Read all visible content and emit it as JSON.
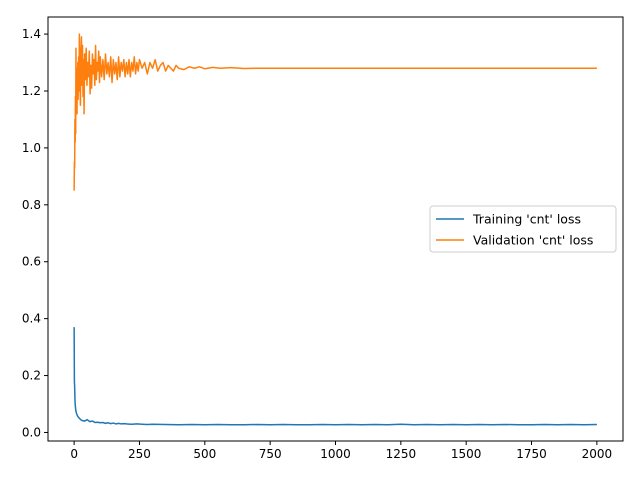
{
  "chart_data": {
    "type": "line",
    "title": "",
    "xlabel": "",
    "ylabel": "",
    "xlim": [
      -100,
      2100
    ],
    "ylim": [
      -0.03,
      1.46
    ],
    "xticks": [
      0,
      250,
      500,
      750,
      1000,
      1250,
      1500,
      1750,
      2000
    ],
    "yticks": [
      0.0,
      0.2,
      0.4,
      0.6,
      0.8,
      1.0,
      1.2,
      1.4
    ],
    "ytick_labels": [
      "0.0",
      "0.2",
      "0.4",
      "0.6",
      "0.8",
      "1.0",
      "1.2",
      "1.4"
    ],
    "grid": false,
    "legend_position": "center-right",
    "series": [
      {
        "name": "Training 'cnt' loss",
        "color": "#1f77b4",
        "x": [
          0,
          1,
          2,
          3,
          4,
          5,
          6,
          8,
          10,
          12,
          15,
          20,
          25,
          30,
          40,
          50,
          60,
          70,
          80,
          90,
          100,
          110,
          120,
          130,
          140,
          150,
          160,
          170,
          180,
          190,
          200,
          220,
          240,
          260,
          280,
          300,
          350,
          400,
          450,
          500,
          550,
          600,
          650,
          700,
          750,
          800,
          850,
          900,
          950,
          1000,
          1050,
          1100,
          1150,
          1200,
          1250,
          1300,
          1350,
          1400,
          1450,
          1500,
          1550,
          1600,
          1650,
          1700,
          1750,
          1800,
          1850,
          1900,
          1950,
          2000
        ],
        "values": [
          0.37,
          0.18,
          0.16,
          0.12,
          0.1,
          0.09,
          0.08,
          0.07,
          0.065,
          0.06,
          0.055,
          0.05,
          0.045,
          0.042,
          0.04,
          0.045,
          0.038,
          0.04,
          0.035,
          0.036,
          0.034,
          0.035,
          0.032,
          0.034,
          0.031,
          0.033,
          0.03,
          0.032,
          0.03,
          0.031,
          0.03,
          0.029,
          0.03,
          0.029,
          0.028,
          0.029,
          0.028,
          0.027,
          0.028,
          0.027,
          0.028,
          0.027,
          0.027,
          0.028,
          0.027,
          0.028,
          0.027,
          0.027,
          0.028,
          0.027,
          0.028,
          0.027,
          0.028,
          0.027,
          0.029,
          0.027,
          0.028,
          0.027,
          0.028,
          0.027,
          0.028,
          0.027,
          0.028,
          0.027,
          0.027,
          0.028,
          0.027,
          0.028,
          0.027,
          0.028
        ]
      },
      {
        "name": "Validation 'cnt' loss",
        "color": "#ff7f0e",
        "x": [
          0,
          1,
          2,
          3,
          4,
          5,
          6,
          7,
          8,
          9,
          10,
          11,
          12,
          13,
          14,
          15,
          16,
          17,
          18,
          19,
          20,
          22,
          24,
          26,
          28,
          30,
          32,
          34,
          36,
          38,
          40,
          43,
          46,
          49,
          52,
          55,
          58,
          61,
          64,
          67,
          70,
          73,
          76,
          79,
          82,
          85,
          88,
          91,
          94,
          97,
          100,
          105,
          110,
          115,
          120,
          125,
          130,
          135,
          140,
          145,
          150,
          155,
          160,
          165,
          170,
          175,
          180,
          185,
          190,
          195,
          200,
          205,
          210,
          215,
          220,
          225,
          230,
          235,
          240,
          245,
          250,
          260,
          270,
          280,
          290,
          300,
          310,
          320,
          330,
          340,
          350,
          360,
          370,
          380,
          390,
          400,
          420,
          440,
          460,
          480,
          500,
          530,
          560,
          600,
          650,
          700,
          750,
          800,
          900,
          1000,
          1200,
          1400,
          1600,
          1800,
          2000
        ],
        "values": [
          0.85,
          0.95,
          0.93,
          1.1,
          1.02,
          1.18,
          1.05,
          1.35,
          1.15,
          1.22,
          1.28,
          1.12,
          1.25,
          1.18,
          1.3,
          1.17,
          1.22,
          1.32,
          1.2,
          1.25,
          1.4,
          1.27,
          1.15,
          1.33,
          1.39,
          1.22,
          1.36,
          1.18,
          1.31,
          1.12,
          1.33,
          1.24,
          1.35,
          1.22,
          1.3,
          1.25,
          1.34,
          1.19,
          1.29,
          1.21,
          1.33,
          1.26,
          1.31,
          1.22,
          1.36,
          1.24,
          1.3,
          1.27,
          1.34,
          1.23,
          1.32,
          1.25,
          1.31,
          1.24,
          1.33,
          1.26,
          1.3,
          1.25,
          1.32,
          1.23,
          1.31,
          1.26,
          1.3,
          1.24,
          1.32,
          1.25,
          1.3,
          1.27,
          1.31,
          1.25,
          1.3,
          1.26,
          1.31,
          1.25,
          1.3,
          1.27,
          1.32,
          1.26,
          1.3,
          1.27,
          1.31,
          1.28,
          1.3,
          1.26,
          1.3,
          1.28,
          1.31,
          1.27,
          1.29,
          1.3,
          1.27,
          1.29,
          1.28,
          1.27,
          1.29,
          1.28,
          1.275,
          1.285,
          1.28,
          1.285,
          1.278,
          1.283,
          1.28,
          1.282,
          1.279,
          1.28,
          1.28,
          1.28,
          1.28,
          1.28,
          1.28,
          1.28,
          1.28,
          1.28,
          1.28
        ]
      }
    ]
  }
}
